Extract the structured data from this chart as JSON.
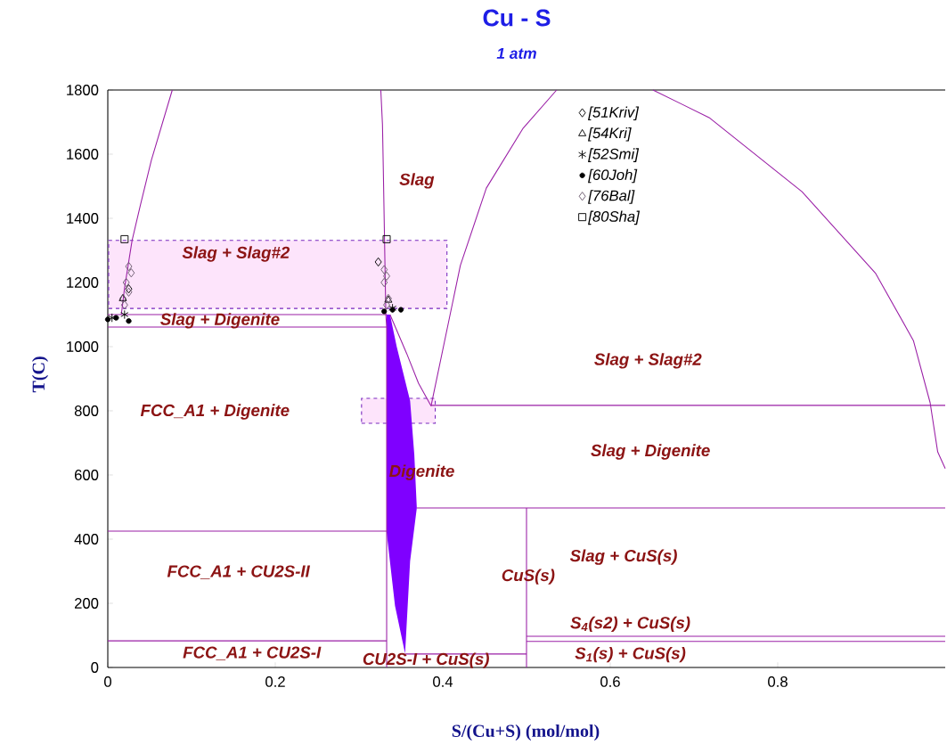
{
  "chart_data": {
    "type": "line",
    "title": "Cu - S",
    "subtitle": "1 atm",
    "xlabel": "S/(Cu+S) (mol/mol)",
    "ylabel": "T(C)",
    "xlim": [
      0,
      1
    ],
    "ylim": [
      0,
      1800
    ],
    "xticks": [
      0,
      0.2,
      0.4,
      0.6,
      0.8
    ],
    "yticks": [
      0,
      200,
      400,
      600,
      800,
      1000,
      1200,
      1400,
      1600,
      1800
    ],
    "legend": "top",
    "series": [
      {
        "type": "area",
        "color": "#fde4fb",
        "line_style": "dashed",
        "x": [
          0.001,
          0.405,
          0.405,
          0.001,
          0.001
        ],
        "values": [
          1119,
          1119,
          1331,
          1331,
          1119
        ]
      },
      {
        "type": "area",
        "color": "#fde4fb",
        "line_style": "dashed",
        "x": [
          0.303,
          0.391,
          0.391,
          0.303,
          0.303
        ],
        "values": [
          761,
          761,
          839,
          839,
          761
        ]
      },
      {
        "type": "area",
        "color": "#7f00ff",
        "x": [
          0.333,
          0.333,
          0.343,
          0.355,
          0.361,
          0.369,
          0.366,
          0.361,
          0.345,
          0.337,
          0.333
        ],
        "values": [
          1100,
          420,
          192,
          44,
          331,
          497,
          664,
          831,
          1000,
          1100,
          1100
        ]
      },
      {
        "color": "#9a1fa6",
        "x": [
          0.016,
          0.017,
          0.02,
          0.029,
          0.039,
          0.052,
          0.077
        ],
        "values": [
          1100,
          1117,
          1183,
          1331,
          1442,
          1581,
          1800
        ]
      },
      {
        "color": "#9a1fa6",
        "x": [
          0.326,
          0.328,
          0.329,
          0.332,
          0.333,
          0.333
        ],
        "values": [
          1800,
          1692,
          1553,
          1100,
          1061,
          0
        ]
      },
      {
        "color": "#9a1fa6",
        "x": [
          0.337,
          0.357,
          0.371,
          0.386
        ],
        "values": [
          1100,
          978,
          886,
          815
        ]
      },
      {
        "color": "#9a1fa6",
        "x": [
          0.386,
          0.421,
          0.452,
          0.496,
          0.536
        ],
        "values": [
          815,
          1253,
          1494,
          1681,
          1800
        ]
      },
      {
        "color": "#9a1fa6",
        "x": [
          0.651,
          0.718,
          0.829,
          0.917,
          0.962,
          0.982,
          0.991,
          1.0
        ],
        "values": [
          1800,
          1714,
          1483,
          1228,
          1019,
          825,
          672,
          620
        ]
      },
      {
        "color": "#9a1fa6",
        "x": [
          0,
          0.333
        ],
        "values": [
          1100,
          1100
        ]
      },
      {
        "color": "#9a1fa6",
        "x": [
          0,
          0.333
        ],
        "values": [
          1061,
          1061
        ]
      },
      {
        "color": "#9a1fa6",
        "x": [
          0.386,
          1
        ],
        "values": [
          817,
          817
        ]
      },
      {
        "color": "#9a1fa6",
        "x": [
          0.369,
          1
        ],
        "values": [
          497,
          497
        ]
      },
      {
        "color": "#9a1fa6",
        "x": [
          0,
          0.333
        ],
        "values": [
          425,
          425
        ]
      },
      {
        "color": "#9a1fa6",
        "x": [
          0,
          0.333
        ],
        "values": [
          83,
          83
        ]
      },
      {
        "color": "#9a1fa6",
        "x": [
          0.355,
          0.5
        ],
        "values": [
          42,
          42
        ]
      },
      {
        "color": "#9a1fa6",
        "x": [
          0.5,
          0.5
        ],
        "values": [
          0,
          497
        ]
      },
      {
        "color": "#9a1fa6",
        "x": [
          0.5,
          1
        ],
        "values": [
          97,
          97
        ]
      },
      {
        "color": "#9a1fa6",
        "x": [
          0.5,
          1
        ],
        "values": [
          81,
          81
        ]
      },
      {
        "type": "scatter",
        "name": "[51Kriv]",
        "marker": "diamond",
        "color": "#000000",
        "x": [
          0.323,
          0.025
        ],
        "values": [
          1264,
          1180
        ]
      },
      {
        "type": "scatter",
        "name": "[54Kri]",
        "marker": "triangle",
        "color": "#000000",
        "x": [
          0.018,
          0.335
        ],
        "values": [
          1150,
          1145
        ]
      },
      {
        "type": "scatter",
        "name": "[52Smi]",
        "marker": "cross",
        "color": "#000000",
        "x": [
          0.02,
          0.005,
          0.34
        ],
        "values": [
          1100,
          1090,
          1120
        ]
      },
      {
        "type": "scatter",
        "name": "[60Joh]",
        "marker": "circle",
        "color": "#000000",
        "x": [
          0.0,
          0.01,
          0.025,
          0.34,
          0.35,
          0.33
        ],
        "values": [
          1085,
          1090,
          1080,
          1115,
          1115,
          1110
        ]
      },
      {
        "type": "scatter",
        "name": "[76Bal]",
        "marker": "diamond",
        "color": "#6b5a6e",
        "x": [
          0.025,
          0.028,
          0.022,
          0.025,
          0.018,
          0.02,
          0.33,
          0.333,
          0.33,
          0.335,
          0.333
        ],
        "values": [
          1250,
          1230,
          1200,
          1170,
          1150,
          1130,
          1240,
          1220,
          1200,
          1150,
          1130
        ]
      },
      {
        "type": "scatter",
        "name": "[80Sha]",
        "marker": "square",
        "color": "#000000",
        "x": [
          0.02,
          0.333
        ],
        "values": [
          1335,
          1335
        ]
      }
    ],
    "annotations": [
      "Slag",
      "Slag + Slag#2",
      "Slag + Digenite",
      "Slag + Slag#2",
      "FCC_A1 + Digenite",
      "Slag + Digenite",
      "Digenite",
      "Slag + CuS(s)",
      "FCC_A1 + CU2S-II",
      "CuS(s)",
      "FCC_A1 + CU2S-I",
      "CU2S-I + CuS(s)",
      "S$_{4}$(s2) + CuS(s)",
      "S$_{1}$(s) + CuS(s)"
    ]
  }
}
